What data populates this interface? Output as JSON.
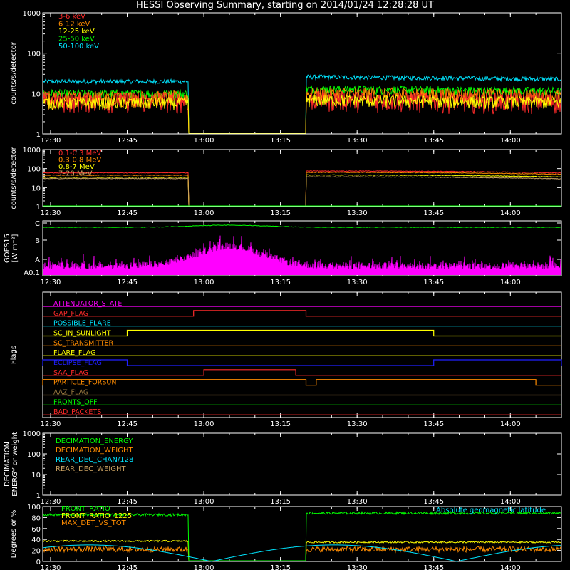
{
  "title": "HESSI Observing Summary, starting on 2014/01/24 12:28:28 UT",
  "time_ticks": [
    "12:30",
    "12:45",
    "13:00",
    "13:15",
    "13:30",
    "13:45",
    "14:00"
  ],
  "colors": {
    "red": "#ff2a2a",
    "orange": "#ff8c00",
    "yellow": "#ffff00",
    "green": "#00ff00",
    "cyan": "#00e5ff",
    "magenta": "#ff00ff",
    "blue": "#2020ff",
    "olive": "#c8a060",
    "olive_dark": "#9a7a40",
    "white": "#ffffff"
  },
  "chart_data": [
    {
      "name": "hxr-rates",
      "type": "line",
      "ylabel": "counts/s/detector",
      "yscale": "log",
      "ylim": [
        1,
        1000
      ],
      "y_ticks": [
        "1",
        "10",
        "100",
        "1000"
      ],
      "legend": [
        "3-6 keV",
        "6-12 keV",
        "12-25 keV",
        "25-50 keV",
        "50-100 keV"
      ],
      "legend_colors": [
        "#ff2a2a",
        "#ff8c00",
        "#ffff00",
        "#00ff00",
        "#00e5ff"
      ],
      "data_gap": [
        "12:57",
        "13:20"
      ],
      "series": [
        {
          "name": "3-6 keV",
          "before": 7,
          "after": 7.5
        },
        {
          "name": "6-12 keV",
          "before": 8,
          "after": 10
        },
        {
          "name": "12-25 keV",
          "before": 6,
          "after": 7
        },
        {
          "name": "25-50 keV",
          "before": 10,
          "after": 13
        },
        {
          "name": "50-100 keV",
          "before": 20,
          "after": 26
        }
      ]
    },
    {
      "name": "gamma-rates",
      "type": "line",
      "ylabel": "counts/s/detector",
      "yscale": "log",
      "ylim": [
        1,
        1000
      ],
      "y_ticks": [
        "1",
        "10",
        "100",
        "1000"
      ],
      "legend": [
        "0.1-0.3 MeV",
        "0.3-0.8 MeV",
        "0.8-7 MeV",
        "7-20 MeV"
      ],
      "legend_colors": [
        "#ff2a2a",
        "#ff8c00",
        "#ffff00",
        "#c8a060"
      ],
      "data_gap": [
        "12:57",
        "13:20"
      ],
      "series": [
        {
          "name": "0.1-0.3 MeV",
          "before": 60,
          "after": 65
        },
        {
          "name": "0.3-0.8 MeV",
          "before": 45,
          "after": 55
        },
        {
          "name": "0.8-7 MeV",
          "before": 35,
          "after": 40
        },
        {
          "name": "7-20 MeV",
          "before": 30,
          "after": 32
        }
      ]
    },
    {
      "name": "goes",
      "type": "line",
      "ylabel": "GOES15",
      "ylabel2": "[W m⁻²]",
      "y_ticks": [
        "A0.1",
        "A",
        "B",
        "C"
      ],
      "series": [
        {
          "name": "long",
          "color": "#00ff00",
          "level": "C"
        },
        {
          "name": "short",
          "color": "#ff00ff",
          "level": "A0.1",
          "peak_time": "13:05",
          "peak_level": "A"
        }
      ]
    },
    {
      "name": "flags",
      "type": "line",
      "ylabel": "Flags",
      "flags": [
        {
          "label": "ATTENUATOR_STATE",
          "color": "#ff00ff",
          "high": []
        },
        {
          "label": "GAP_FLAG",
          "color": "#ff2a2a",
          "high": [
            [
              "12:58",
              "13:20"
            ]
          ]
        },
        {
          "label": "POSSIBLE_FLARE",
          "color": "#00e5ff",
          "high": []
        },
        {
          "label": "SC_IN_SUNLIGHT",
          "color": "#ffff00",
          "high": [
            [
              "12:45",
              "13:45"
            ]
          ]
        },
        {
          "label": "SC_TRANSMITTER",
          "color": "#ff8c00",
          "high": []
        },
        {
          "label": "FLARE_FLAG",
          "color": "#ffff00",
          "high": []
        },
        {
          "label": "ECLIPSE_FLAG",
          "color": "#2020ff",
          "high": [
            [
              "12:28",
              "12:45"
            ],
            [
              "13:45",
              "14:10"
            ]
          ]
        },
        {
          "label": "SAA_FLAG",
          "color": "#ff2a2a",
          "high": [
            [
              "13:00",
              "13:18"
            ]
          ]
        },
        {
          "label": "PARTICLE_FORSUN",
          "color": "#ff8c00",
          "high": [
            [
              "12:28",
              "13:20"
            ],
            [
              "13:22",
              "14:05"
            ]
          ]
        },
        {
          "label": "AAZ_FLAG",
          "color": "#9a7a40",
          "high": []
        },
        {
          "label": "FRONTS_OFF",
          "color": "#00ff00",
          "high": []
        },
        {
          "label": "BAD_PACKETS",
          "color": "#ff2a2a",
          "high": []
        }
      ]
    },
    {
      "name": "decimation",
      "type": "line",
      "ylabel": "DECIMATION",
      "ylabel2": "ENERGY or weight",
      "yscale": "log",
      "y_ticks": [
        "1",
        "10",
        "100",
        "1000"
      ],
      "legend": [
        "DECIMATION_ENERGY",
        "DECIMATION_WEIGHT",
        "REAR_DEC_CHAN/128",
        "REAR_DEC_WEIGHT"
      ],
      "legend_colors": [
        "#00ff00",
        "#ff8c00",
        "#00e5ff",
        "#c8a060"
      ]
    },
    {
      "name": "ratios",
      "type": "line",
      "ylabel": "Degrees or %",
      "ylim": [
        0,
        100
      ],
      "y_ticks": [
        "0",
        "20",
        "40",
        "60",
        "80",
        "100"
      ],
      "legend": [
        "FRONT_RATIO",
        "FRONT_RATIO_1225",
        "MAX_DET_VS_TOT"
      ],
      "legend_colors": [
        "#00ff00",
        "#ffff00",
        "#ff8c00"
      ],
      "annotation": "Absolute geomagnetic latitude",
      "annotation_color": "#00e5ff",
      "series": [
        {
          "name": "FRONT_RATIO",
          "before": 85,
          "after": 88
        },
        {
          "name": "FRONT_RATIO_1225",
          "before": 37,
          "after": 35
        },
        {
          "name": "MAX_DET_VS_TOT",
          "before": 22,
          "after": 22
        },
        {
          "name": "Absolute geomagnetic latitude",
          "min": 0,
          "max": 30
        }
      ]
    }
  ]
}
